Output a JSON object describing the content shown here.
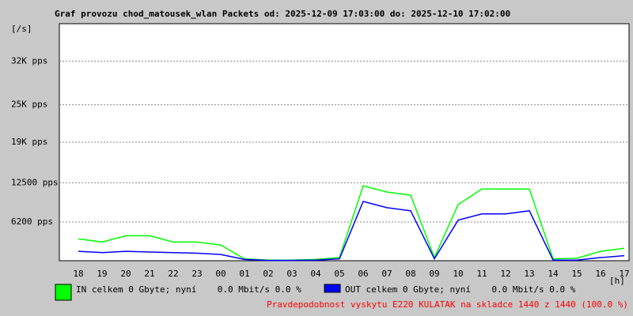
{
  "chart_data": {
    "type": "line",
    "title": "Graf provozu chod_matousek_wlan Packets od: 2025-12-09 17:03:00 do: 2025-12-10 17:02:00",
    "y_label": "[/s]",
    "x_label": "[h]",
    "annotation": "Pravdepodobnost vyskytu E220 KULATAK na skladce 1440 z 1440 (100.0 %)",
    "categories": [
      "18",
      "19",
      "20",
      "21",
      "22",
      "23",
      "00",
      "01",
      "02",
      "03",
      "04",
      "05",
      "06",
      "07",
      "08",
      "09",
      "10",
      "11",
      "12",
      "13",
      "14",
      "15",
      "16",
      "17"
    ],
    "series": [
      {
        "name": "IN celkem 0 Gbyte; nyní    0.0 Mbit/s 0.0 %",
        "color": "#00ff00",
        "values": [
          3500,
          3000,
          4000,
          4000,
          3000,
          3000,
          2500,
          300,
          100,
          100,
          200,
          500,
          12000,
          11000,
          10500,
          500,
          9000,
          11500,
          11500,
          11500,
          300,
          400,
          1500,
          2000
        ]
      },
      {
        "name": "OUT celkem 0 Gbyte; nyní    0.0 Mbit/s 0.0 %",
        "color": "#0000ff",
        "values": [
          1500,
          1300,
          1500,
          1400,
          1300,
          1200,
          1000,
          200,
          50,
          50,
          100,
          300,
          9500,
          8500,
          8000,
          300,
          6500,
          7500,
          7500,
          8000,
          100,
          100,
          500,
          800
        ]
      }
    ],
    "ylim": [
      0,
      38000
    ],
    "yticks": [
      {
        "value": 6200,
        "label": "6200 pps"
      },
      {
        "value": 12500,
        "label": "12500 pps"
      },
      {
        "value": 19000,
        "label": "19K pps"
      },
      {
        "value": 25000,
        "label": "25K pps"
      },
      {
        "value": 32000,
        "label": "32K pps"
      }
    ],
    "grid": true
  }
}
